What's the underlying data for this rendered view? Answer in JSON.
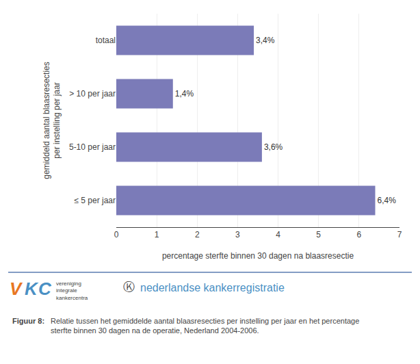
{
  "chart_data": {
    "type": "bar",
    "orientation": "horizontal",
    "categories": [
      "≤ 5 per jaar",
      "5-10 per jaar",
      "> 10 per jaar",
      "totaal"
    ],
    "values": [
      6.4,
      3.6,
      1.4,
      3.4
    ],
    "value_labels": [
      "6,4%",
      "3,6%",
      "1,4%",
      "3,4%"
    ],
    "data_labels": true,
    "color": "#7b7bb8",
    "xlabel": "percentage sterfte binnen 30 dagen na blaasresectie",
    "ylabel": "gemiddeld aantal blaasresecties\nper instelling per jaar",
    "xlim": [
      0,
      7
    ],
    "xticks": [
      0,
      1,
      2,
      3,
      4,
      5,
      6,
      7
    ],
    "grid": true,
    "annotations": [
      {
        "text": "V",
        "color": "#e87722"
      },
      {
        "text": "K",
        "color": "#4a90c4"
      },
      {
        "text": "C",
        "color": "#4a90c4"
      },
      {
        "text": "vereniging\nintegrale\nkankercentra"
      },
      {
        "text": "Ⓚ"
      },
      {
        "text": "nederlandse kankerregistratie",
        "color": "#4a90c4"
      },
      {
        "text": "Figuur 8:"
      },
      {
        "text": "Relatie tussen het gemiddelde aantal blaasresecties per instelling per jaar en het percentage\nsterfte binnen 30 dagen na de operatie, Nederland 2004-2006."
      }
    ]
  }
}
